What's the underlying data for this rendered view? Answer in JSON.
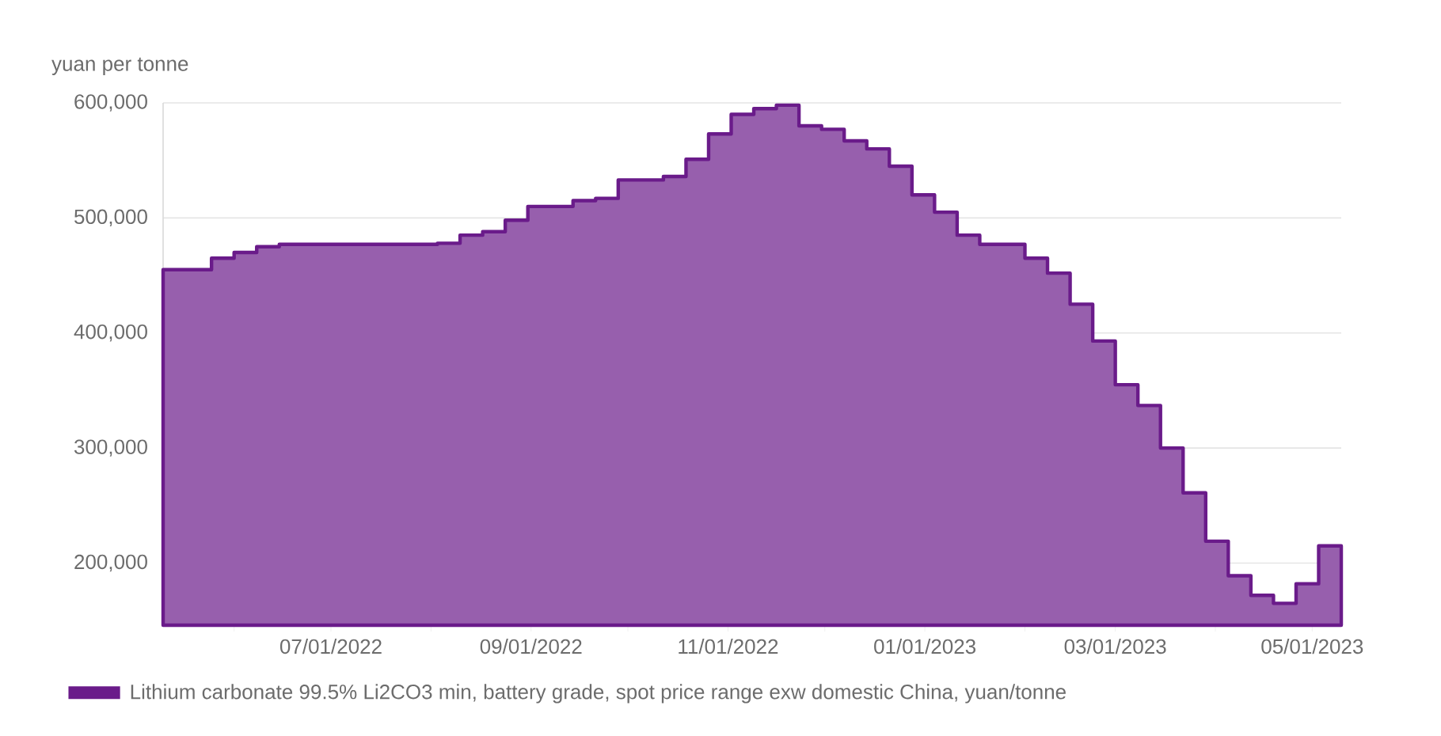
{
  "chart_data": {
    "type": "area",
    "ylabel": "yuan per tonne",
    "x": [
      "2022-05-10",
      "2022-05-25",
      "2022-06-01",
      "2022-06-08",
      "2022-06-15",
      "2022-08-03",
      "2022-08-10",
      "2022-08-17",
      "2022-08-24",
      "2022-08-31",
      "2022-09-14",
      "2022-09-21",
      "2022-09-28",
      "2022-10-12",
      "2022-10-19",
      "2022-10-26",
      "2022-11-02",
      "2022-11-09",
      "2022-11-16",
      "2022-11-23",
      "2022-11-30",
      "2022-12-07",
      "2022-12-14",
      "2022-12-21",
      "2022-12-28",
      "2023-01-04",
      "2023-01-11",
      "2023-01-18",
      "2023-02-01",
      "2023-02-08",
      "2023-02-15",
      "2023-02-22",
      "2023-03-01",
      "2023-03-08",
      "2023-03-15",
      "2023-03-22",
      "2023-03-29",
      "2023-04-05",
      "2023-04-12",
      "2023-04-19",
      "2023-04-26",
      "2023-05-03",
      "2023-05-10"
    ],
    "series": [
      {
        "name": "Lithium carbonate 99.5% Li2CO3 min, battery grade, spot price range exw domestic China, yuan/tonne",
        "color": "#6a1b8a",
        "values": [
          455000,
          465000,
          470000,
          475000,
          477000,
          478000,
          485000,
          488000,
          498000,
          510000,
          515000,
          517000,
          533000,
          536000,
          551000,
          573000,
          590000,
          595000,
          598000,
          580000,
          577000,
          567000,
          560000,
          545000,
          520000,
          505000,
          485000,
          477000,
          465000,
          452000,
          425000,
          393000,
          355000,
          337000,
          300000,
          261000,
          219000,
          189000,
          172000,
          165000,
          182000,
          215000,
          215000
        ]
      }
    ],
    "xlim": [
      "2022-05-10",
      "2023-05-10"
    ],
    "xticks": [
      {
        "value": "2022-06-01",
        "label": null
      },
      {
        "value": "2022-07-01",
        "label": "07/01/2022"
      },
      {
        "value": "2022-08-01",
        "label": null
      },
      {
        "value": "2022-09-01",
        "label": "09/01/2022"
      },
      {
        "value": "2022-10-01",
        "label": null
      },
      {
        "value": "2022-11-01",
        "label": "11/01/2022"
      },
      {
        "value": "2022-12-01",
        "label": null
      },
      {
        "value": "2023-01-01",
        "label": "01/01/2023"
      },
      {
        "value": "2023-02-01",
        "label": null
      },
      {
        "value": "2023-03-01",
        "label": "03/01/2023"
      },
      {
        "value": "2023-04-01",
        "label": null
      },
      {
        "value": "2023-05-01",
        "label": "05/01/2023"
      }
    ],
    "ylim": [
      146000,
      600000
    ],
    "yticks": [
      {
        "value": 200000,
        "label": "200,000"
      },
      {
        "value": 300000,
        "label": "300,000"
      },
      {
        "value": 400000,
        "label": "400,000"
      },
      {
        "value": 500000,
        "label": "500,000"
      },
      {
        "value": 600000,
        "label": "600,000"
      }
    ],
    "grid": "y",
    "legend": "bottom"
  }
}
